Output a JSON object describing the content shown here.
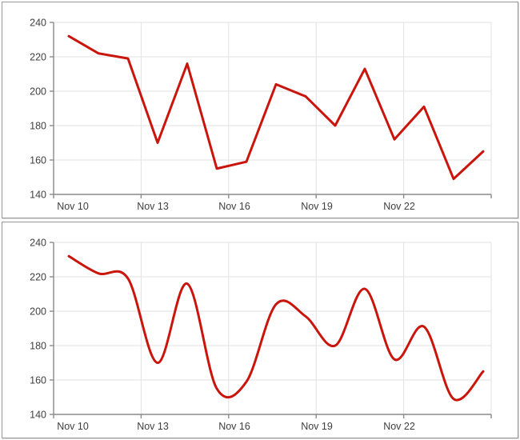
{
  "styles": {
    "background": "#ffffff",
    "panel_border_color": "#979797",
    "axis_color": "#8a8a8a",
    "grid_color": "#e2e2e2",
    "tick_label_color": "#404040",
    "line_color": "#c9150c"
  },
  "chart_data": [
    {
      "type": "line",
      "smoothing": false,
      "title": "",
      "xlabel": "",
      "ylabel": "",
      "x": [
        "Nov 10",
        "Nov 11",
        "Nov 12",
        "Nov 13",
        "Nov 14",
        "Nov 15",
        "Nov 16",
        "Nov 17",
        "Nov 18",
        "Nov 19",
        "Nov 20",
        "Nov 21",
        "Nov 22",
        "Nov 23",
        "Nov 24"
      ],
      "values": [
        232,
        222,
        219,
        170,
        216,
        155,
        159,
        204,
        197,
        180,
        213,
        172,
        191,
        149,
        165
      ],
      "ylim": [
        140,
        240
      ],
      "y_ticks": [
        240,
        220,
        200,
        180,
        160,
        140
      ],
      "x_tick_labels": [
        "Nov 10",
        "Nov 13",
        "Nov 16",
        "Nov 19",
        "Nov 22"
      ],
      "grid": "on",
      "legend": "none",
      "line_color": "#c9150c"
    },
    {
      "type": "line",
      "smoothing": true,
      "title": "",
      "xlabel": "",
      "ylabel": "",
      "x": [
        "Nov 10",
        "Nov 11",
        "Nov 12",
        "Nov 13",
        "Nov 14",
        "Nov 15",
        "Nov 16",
        "Nov 17",
        "Nov 18",
        "Nov 19",
        "Nov 20",
        "Nov 21",
        "Nov 22",
        "Nov 23",
        "Nov 24"
      ],
      "values": [
        232,
        222,
        219,
        170,
        216,
        155,
        159,
        204,
        197,
        180,
        213,
        172,
        191,
        149,
        165
      ],
      "ylim": [
        140,
        240
      ],
      "y_ticks": [
        240,
        220,
        200,
        180,
        160,
        140
      ],
      "x_tick_labels": [
        "Nov 10",
        "Nov 13",
        "Nov 16",
        "Nov 19",
        "Nov 22"
      ],
      "grid": "on",
      "legend": "none",
      "line_color": "#c9150c"
    }
  ]
}
